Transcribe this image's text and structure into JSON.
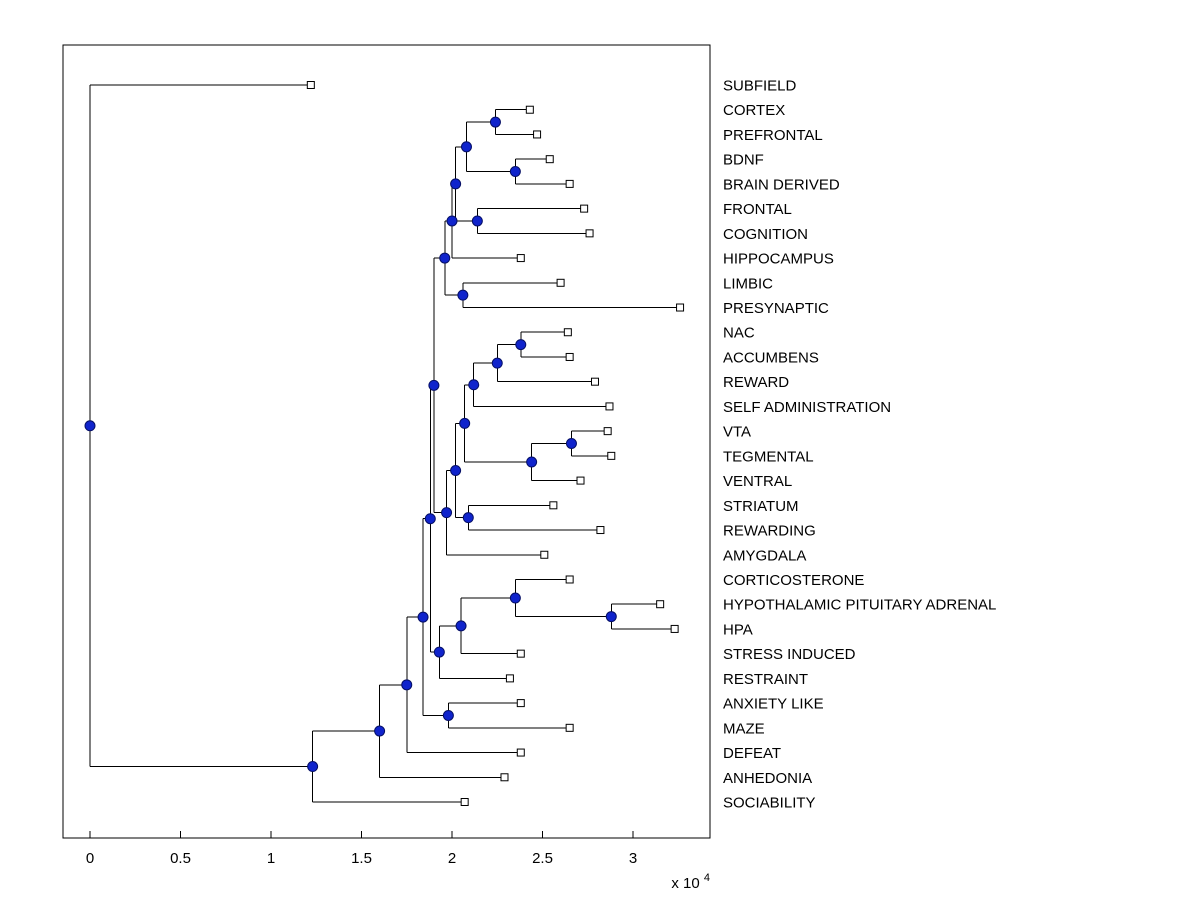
{
  "figure": {
    "background_color": "#ffffff"
  },
  "chart_data": {
    "type": "dendrogram",
    "orientation": "horizontal_leaves_right",
    "units_multiplier": 10000,
    "x_axis": {
      "tick_values": [
        0,
        0.5,
        1,
        1.5,
        2,
        2.5,
        3
      ],
      "tick_labels": [
        "0",
        "0.5",
        "1",
        "1.5",
        "2",
        "2.5",
        "3"
      ],
      "multiplier_prefix": "x 10",
      "multiplier_exponent": "4",
      "xlim": [
        -0.149,
        3.425
      ]
    },
    "style": {
      "link_color": "#000000",
      "node_marker_fill": "#1024cc",
      "node_marker_edge": "#050f66",
      "leaf_marker_fill": "#ffffff",
      "leaf_marker_edge": "#000000",
      "axis_color": "#000000",
      "text_color": "#000000"
    },
    "leaf_labels": [
      "SUBFIELD",
      "CORTEX",
      "PREFRONTAL",
      "BDNF",
      "BRAIN DERIVED",
      "FRONTAL",
      "COGNITION",
      "HIPPOCAMPUS",
      "LIMBIC",
      "PRESYNAPTIC",
      "NAC",
      "ACCUMBENS",
      "REWARD",
      "SELF ADMINISTRATION",
      "VTA",
      "TEGMENTAL",
      "VENTRAL",
      "STRIATUM",
      "REWARDING",
      "AMYGDALA",
      "CORTICOSTERONE",
      "HYPOTHALAMIC PITUITARY ADRENAL",
      "HPA",
      "STRESS INDUCED",
      "RESTRAINT",
      "ANXIETY LIKE",
      "MAZE",
      "DEFEAT",
      "ANHEDONIA",
      "SOCIABILITY"
    ],
    "tree": {
      "h": 0.0,
      "children": [
        {
          "label": "SUBFIELD",
          "tip_h": 1.22
        },
        {
          "h": 1.23,
          "children": [
            {
              "h": 1.6,
              "children": [
                {
                  "h": 1.75,
                  "children": [
                    {
                      "h": 1.84,
                      "children": [
                        {
                          "h": 1.88,
                          "children": [
                            {
                              "h": 1.9,
                              "children": [
                                {
                                  "h": 1.96,
                                  "children": [
                                    {
                                      "h": 2.0,
                                      "children": [
                                        {
                                          "h": 2.02,
                                          "children": [
                                            {
                                              "h": 2.08,
                                              "children": [
                                                {
                                                  "h": 2.24,
                                                  "children": [
                                                    {
                                                      "label": "CORTEX",
                                                      "tip_h": 2.43
                                                    },
                                                    {
                                                      "label": "PREFRONTAL",
                                                      "tip_h": 2.47
                                                    }
                                                  ]
                                                },
                                                {
                                                  "h": 2.35,
                                                  "children": [
                                                    {
                                                      "label": "BDNF",
                                                      "tip_h": 2.54
                                                    },
                                                    {
                                                      "label": "BRAIN DERIVED",
                                                      "tip_h": 2.65
                                                    }
                                                  ]
                                                }
                                              ]
                                            },
                                            {
                                              "h": 2.14,
                                              "children": [
                                                {
                                                  "label": "FRONTAL",
                                                  "tip_h": 2.73
                                                },
                                                {
                                                  "label": "COGNITION",
                                                  "tip_h": 2.76
                                                }
                                              ]
                                            }
                                          ]
                                        },
                                        {
                                          "label": "HIPPOCAMPUS",
                                          "tip_h": 2.38
                                        }
                                      ]
                                    },
                                    {
                                      "h": 2.06,
                                      "children": [
                                        {
                                          "label": "LIMBIC",
                                          "tip_h": 2.6
                                        },
                                        {
                                          "label": "PRESYNAPTIC",
                                          "tip_h": 3.26
                                        }
                                      ]
                                    }
                                  ]
                                },
                                {
                                  "h": 1.97,
                                  "children": [
                                    {
                                      "h": 2.02,
                                      "children": [
                                        {
                                          "h": 2.07,
                                          "children": [
                                            {
                                              "h": 2.12,
                                              "children": [
                                                {
                                                  "h": 2.25,
                                                  "children": [
                                                    {
                                                      "h": 2.38,
                                                      "children": [
                                                        {
                                                          "label": "NAC",
                                                          "tip_h": 2.64
                                                        },
                                                        {
                                                          "label": "ACCUMBENS",
                                                          "tip_h": 2.65
                                                        }
                                                      ]
                                                    },
                                                    {
                                                      "label": "REWARD",
                                                      "tip_h": 2.79
                                                    }
                                                  ]
                                                },
                                                {
                                                  "label": "SELF ADMINISTRATION",
                                                  "tip_h": 2.87
                                                }
                                              ]
                                            },
                                            {
                                              "h": 2.44,
                                              "children": [
                                                {
                                                  "h": 2.66,
                                                  "children": [
                                                    {
                                                      "label": "VTA",
                                                      "tip_h": 2.86
                                                    },
                                                    {
                                                      "label": "TEGMENTAL",
                                                      "tip_h": 2.88
                                                    }
                                                  ]
                                                },
                                                {
                                                  "label": "VENTRAL",
                                                  "tip_h": 2.71
                                                }
                                              ]
                                            }
                                          ]
                                        },
                                        {
                                          "h": 2.09,
                                          "children": [
                                            {
                                              "label": "STRIATUM",
                                              "tip_h": 2.56
                                            },
                                            {
                                              "label": "REWARDING",
                                              "tip_h": 2.82
                                            }
                                          ]
                                        }
                                      ]
                                    },
                                    {
                                      "label": "AMYGDALA",
                                      "tip_h": 2.51
                                    }
                                  ]
                                }
                              ]
                            },
                            {
                              "h": 1.93,
                              "children": [
                                {
                                  "h": 2.05,
                                  "children": [
                                    {
                                      "h": 2.35,
                                      "children": [
                                        {
                                          "label": "CORTICOSTERONE",
                                          "tip_h": 2.65
                                        },
                                        {
                                          "h": 2.88,
                                          "children": [
                                            {
                                              "label": "HYPOTHALAMIC PITUITARY ADRENAL",
                                              "tip_h": 3.15
                                            },
                                            {
                                              "label": "HPA",
                                              "tip_h": 3.23
                                            }
                                          ]
                                        }
                                      ]
                                    },
                                    {
                                      "label": "STRESS INDUCED",
                                      "tip_h": 2.38
                                    }
                                  ]
                                },
                                {
                                  "label": "RESTRAINT",
                                  "tip_h": 2.32
                                }
                              ]
                            }
                          ]
                        },
                        {
                          "h": 1.98,
                          "children": [
                            {
                              "label": "ANXIETY LIKE",
                              "tip_h": 2.38
                            },
                            {
                              "label": "MAZE",
                              "tip_h": 2.65
                            }
                          ]
                        }
                      ]
                    },
                    {
                      "label": "DEFEAT",
                      "tip_h": 2.38
                    }
                  ]
                },
                {
                  "label": "ANHEDONIA",
                  "tip_h": 2.29
                }
              ]
            },
            {
              "label": "SOCIABILITY",
              "tip_h": 2.07
            }
          ]
        }
      ]
    }
  }
}
